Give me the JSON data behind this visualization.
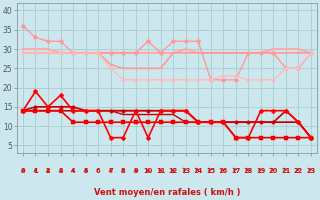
{
  "xlabel": "Vent moyen/en rafales ( km/h )",
  "background_color": "#cce8ee",
  "grid_color": "#aacccc",
  "xlim": [
    -0.5,
    23.5
  ],
  "ylim": [
    3,
    42
  ],
  "yticks": [
    5,
    10,
    15,
    20,
    25,
    30,
    35,
    40
  ],
  "xticks": [
    0,
    1,
    2,
    3,
    4,
    5,
    6,
    7,
    8,
    9,
    10,
    11,
    12,
    13,
    14,
    15,
    16,
    17,
    18,
    19,
    20,
    21,
    22,
    23
  ],
  "x": [
    0,
    1,
    2,
    3,
    4,
    5,
    6,
    7,
    8,
    9,
    10,
    11,
    12,
    13,
    14,
    15,
    16,
    17,
    18,
    19,
    20,
    21,
    22,
    23
  ],
  "lines_light": [
    {
      "y": [
        36,
        33,
        32,
        32,
        29,
        29,
        29,
        29,
        29,
        29,
        32,
        29,
        32,
        32,
        32,
        22,
        22,
        22,
        29,
        29,
        29,
        25,
        25,
        29
      ],
      "color": "#ff9999",
      "marker": "D",
      "lw": 1.0,
      "ms": 2.5,
      "zorder": 3
    },
    {
      "y": [
        30,
        30,
        30,
        29,
        29,
        29,
        29,
        29,
        29,
        29,
        29,
        29,
        29,
        30,
        29,
        29,
        29,
        29,
        29,
        29,
        30,
        30,
        30,
        29
      ],
      "color": "#ffaaaa",
      "marker": null,
      "lw": 1.5,
      "ms": 0,
      "zorder": 2
    },
    {
      "y": [
        29,
        29,
        29,
        29,
        29,
        29,
        29,
        26,
        25,
        25,
        25,
        25,
        29,
        29,
        29,
        29,
        29,
        29,
        29,
        29,
        29,
        29,
        29,
        29
      ],
      "color": "#ff9999",
      "marker": null,
      "lw": 1.2,
      "ms": 0,
      "zorder": 2
    },
    {
      "y": [
        29,
        29,
        29,
        29,
        29,
        29,
        29,
        25,
        22,
        22,
        22,
        22,
        22,
        22,
        22,
        22,
        23,
        23,
        22,
        22,
        22,
        25,
        25,
        29
      ],
      "color": "#ffbbbb",
      "marker": "o",
      "lw": 1.0,
      "ms": 2.5,
      "zorder": 3
    }
  ],
  "lines_dark": [
    {
      "y": [
        14,
        19,
        15,
        18,
        14,
        14,
        14,
        7,
        7,
        14,
        7,
        14,
        14,
        14,
        11,
        11,
        11,
        7,
        7,
        14,
        14,
        14,
        11,
        7
      ],
      "color": "#ff0000",
      "marker": "D",
      "lw": 1.2,
      "ms": 2.5,
      "zorder": 5
    },
    {
      "y": [
        14,
        15,
        15,
        15,
        15,
        14,
        14,
        14,
        14,
        14,
        14,
        14,
        14,
        14,
        11,
        11,
        11,
        11,
        11,
        11,
        11,
        14,
        11,
        7
      ],
      "color": "#cc0000",
      "marker": "o",
      "lw": 1.2,
      "ms": 2.5,
      "zorder": 4
    },
    {
      "y": [
        14,
        14,
        14,
        14,
        14,
        14,
        14,
        14,
        14,
        14,
        14,
        14,
        14,
        14,
        11,
        11,
        11,
        11,
        11,
        11,
        11,
        11,
        11,
        7
      ],
      "color": "#bb0000",
      "marker": null,
      "lw": 1.0,
      "ms": 0,
      "zorder": 3
    },
    {
      "y": [
        14,
        14,
        14,
        14,
        14,
        14,
        14,
        14,
        13,
        13,
        13,
        13,
        13,
        11,
        11,
        11,
        11,
        11,
        11,
        11,
        11,
        11,
        11,
        7
      ],
      "color": "#cc0000",
      "marker": null,
      "lw": 1.0,
      "ms": 0,
      "zorder": 3
    },
    {
      "y": [
        14,
        14,
        14,
        14,
        11,
        11,
        11,
        11,
        11,
        11,
        11,
        11,
        11,
        11,
        11,
        11,
        11,
        7,
        7,
        7,
        7,
        7,
        7,
        7
      ],
      "color": "#ee0000",
      "marker": "s",
      "lw": 1.2,
      "ms": 2.5,
      "zorder": 4
    }
  ],
  "arrow_up_x": [
    0,
    1,
    2,
    3,
    4,
    5,
    7,
    8,
    9,
    10,
    11,
    12
  ],
  "arrow_right_x": [
    13,
    14,
    15,
    16,
    17,
    18,
    19,
    20,
    21,
    22,
    23
  ],
  "arrow_color": "#cc2222"
}
